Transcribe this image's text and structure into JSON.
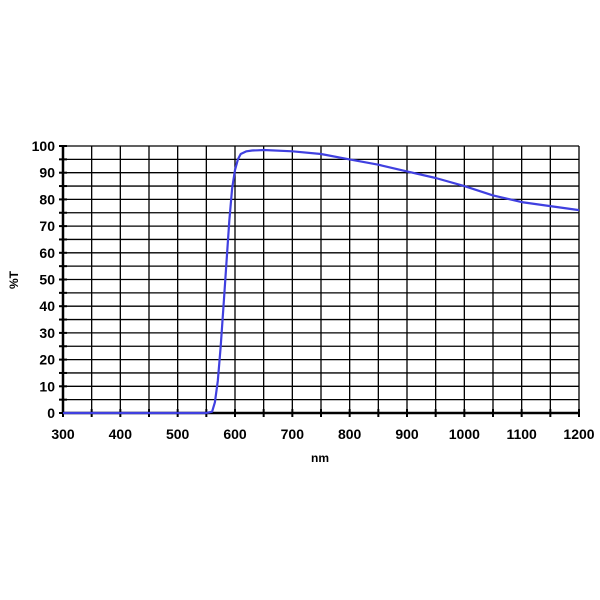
{
  "chart_data": {
    "type": "line",
    "title": "",
    "xlabel": "nm",
    "ylabel": "%T",
    "xlim": [
      300,
      1200
    ],
    "ylim": [
      0,
      100
    ],
    "x_ticks": [
      300,
      400,
      500,
      600,
      700,
      800,
      900,
      1000,
      1100,
      1200
    ],
    "y_ticks": [
      0,
      10,
      20,
      30,
      40,
      50,
      60,
      70,
      80,
      90,
      100
    ],
    "x_grid_step": 50,
    "y_grid_step": 5,
    "grid": true,
    "legend": null,
    "series": [
      {
        "name": "%T",
        "color": "#4040e0",
        "x": [
          300,
          400,
          500,
          550,
          560,
          565,
          570,
          575,
          580,
          585,
          590,
          595,
          600,
          605,
          610,
          620,
          630,
          640,
          650,
          700,
          750,
          800,
          850,
          900,
          950,
          1000,
          1050,
          1100,
          1150,
          1200
        ],
        "y": [
          0,
          0,
          0,
          0,
          0.5,
          4,
          12,
          25,
          40,
          56,
          72,
          84,
          91,
          95,
          97,
          98,
          98.3,
          98.4,
          98.5,
          98,
          97,
          95,
          93,
          90.5,
          88,
          85,
          81.5,
          79,
          77.5,
          76
        ]
      }
    ]
  },
  "colors": {
    "line": "#4040e0",
    "grid": "#000000",
    "background": "#ffffff"
  }
}
